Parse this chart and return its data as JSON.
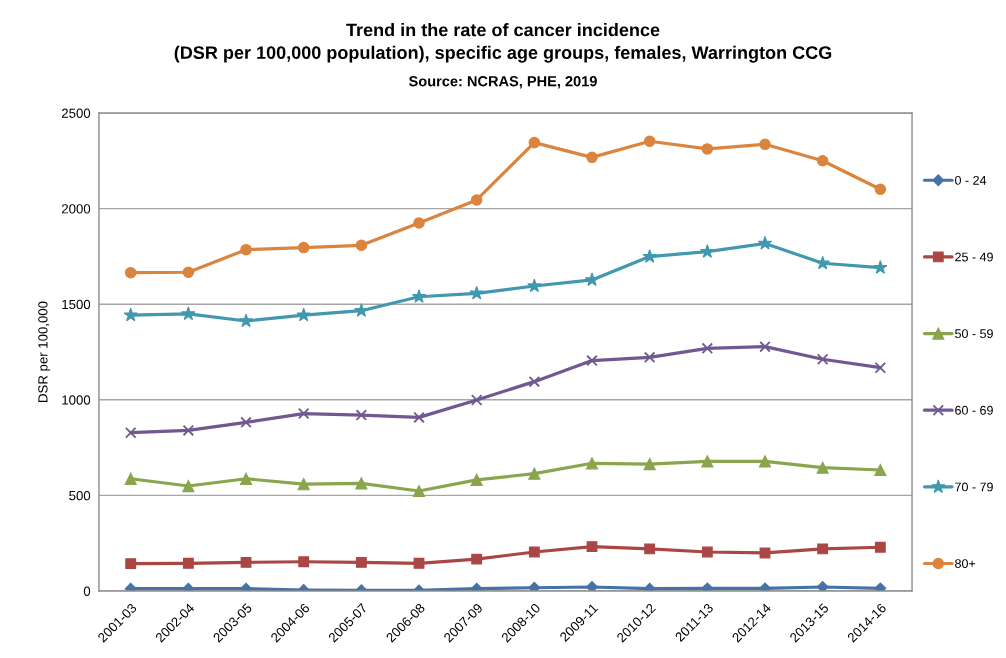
{
  "chart_data": {
    "type": "line",
    "title": "Trend in the rate of cancer incidence\n(DSR per 100,000 population), specific age groups, females, Warrington CCG",
    "annotations": [
      "Source: NCRAS, PHE, 2019"
    ],
    "ylabel": "DSR per 100,000",
    "categories": [
      "2001-03",
      "2002-04",
      "2003-05",
      "2004-06",
      "2005-07",
      "2006-08",
      "2007-09",
      "2008-10",
      "2009-11",
      "2010-12",
      "2011-13",
      "2012-14",
      "2013-15",
      "2014-16"
    ],
    "series": [
      {
        "name": "0 - 24",
        "color": "#4572a7",
        "marker": "diamond",
        "values": [
          12,
          12,
          12,
          5,
          4,
          3,
          12,
          17,
          21,
          12,
          14,
          14,
          21,
          14
        ]
      },
      {
        "name": "25 - 49",
        "color": "#aa4643",
        "marker": "square",
        "values": [
          143,
          145,
          150,
          153,
          150,
          145,
          167,
          204,
          232,
          220,
          204,
          199,
          220,
          229
        ]
      },
      {
        "name": "50 - 59",
        "color": "#89a54e",
        "marker": "triangle",
        "values": [
          587,
          549,
          587,
          559,
          563,
          523,
          581,
          614,
          668,
          664,
          678,
          678,
          645,
          633
        ]
      },
      {
        "name": "60 - 69",
        "color": "#71588f",
        "marker": "cross",
        "values": [
          828,
          840,
          882,
          928,
          920,
          908,
          999,
          1095,
          1205,
          1222,
          1269,
          1278,
          1212,
          1168
        ]
      },
      {
        "name": "70 - 79",
        "color": "#4198af",
        "marker": "star",
        "values": [
          1443,
          1449,
          1412,
          1443,
          1466,
          1539,
          1557,
          1595,
          1627,
          1749,
          1775,
          1818,
          1714,
          1691
        ]
      },
      {
        "name": "80+",
        "color": "#db843d",
        "marker": "circle",
        "values": [
          1665,
          1667,
          1785,
          1796,
          1808,
          1925,
          2045,
          2345,
          2268,
          2352,
          2312,
          2336,
          2250,
          2101
        ]
      }
    ],
    "ylim": [
      0,
      2500
    ],
    "yticks": [
      0,
      500,
      1000,
      1500,
      2000,
      2500
    ],
    "grid": "y",
    "legend": "right",
    "line_style": "solid"
  }
}
